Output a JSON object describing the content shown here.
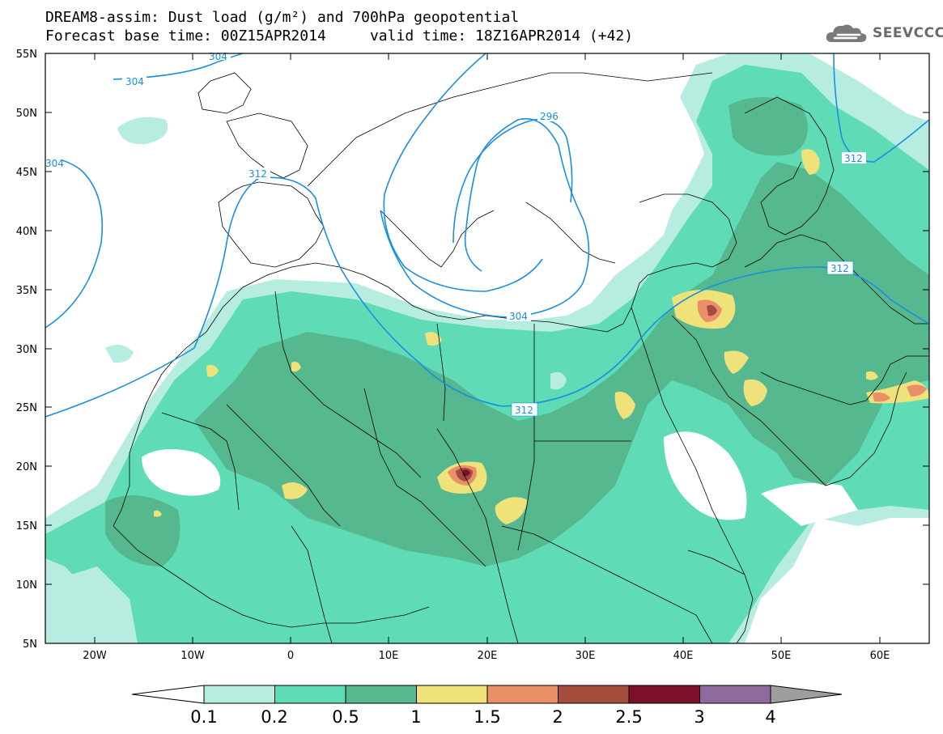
{
  "header": {
    "title_line1": "DREAM8-assim: Dust load (g/m²) and 700hPa geopotential",
    "title_line2": "Forecast base time: 00Z15APR2014     valid time: 18Z16APR2014 (+42)"
  },
  "logo": {
    "icon": "cloud-icon",
    "text": "SEEVCCC"
  },
  "map": {
    "lon_range": [
      -25,
      65
    ],
    "lat_range": [
      5,
      55
    ],
    "lat_ticks": [
      "55N",
      "50N",
      "45N",
      "40N",
      "35N",
      "30N",
      "25N",
      "20N",
      "15N",
      "10N",
      "5N"
    ],
    "lon_ticks": [
      "20W",
      "10W",
      "0",
      "10E",
      "20E",
      "30E",
      "40E",
      "50E",
      "60E"
    ],
    "contour_labels": [
      "304",
      "304",
      "312",
      "296",
      "304",
      "312",
      "312",
      "312",
      "304"
    ],
    "contour_color": "#1a8fe0"
  },
  "colorbar": {
    "labels": [
      "0.1",
      "0.2",
      "0.5",
      "1",
      "1.5",
      "2",
      "2.5",
      "3",
      "4"
    ],
    "colors": [
      "#b7ede0",
      "#5fdcb6",
      "#56b88f",
      "#f0e27a",
      "#ea9068",
      "#a64c3d",
      "#7c0f2a",
      "#8e6a9e",
      "#9e9e9e"
    ]
  }
}
